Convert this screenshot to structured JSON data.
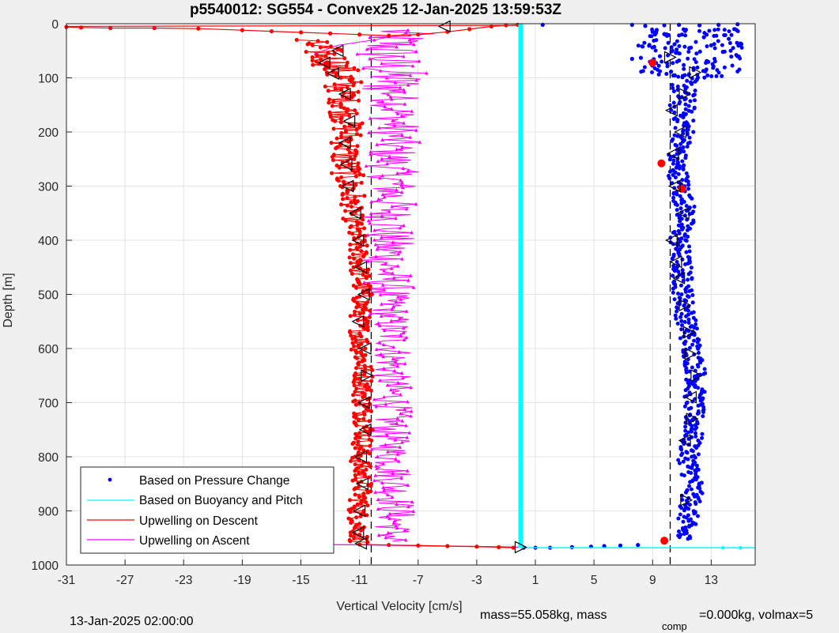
{
  "chart_data": {
    "type": "scatter",
    "title": "p5540012: SG554 - Convex25 12-Jan-2025 13:59:53Z",
    "xlabel": "Vertical Velocity [cm/s]",
    "ylabel": "Depth [m]",
    "xlim": [
      -31,
      16
    ],
    "ylim": [
      0,
      1000
    ],
    "y_reversed": true,
    "grid": true,
    "x_ticks": [
      "-31",
      "-27",
      "-23",
      "-19",
      "-15",
      "-11",
      "-7",
      "-3",
      "1",
      "5",
      "9",
      "13"
    ],
    "y_ticks": [
      "0",
      "100",
      "200",
      "300",
      "400",
      "500",
      "600",
      "700",
      "800",
      "900",
      "1000"
    ],
    "legend_position": "bottom-left",
    "legend": [
      {
        "label": "Based on Pressure Change",
        "color": "#0000ff",
        "style": "dot"
      },
      {
        "label": "Based on Buoyancy and Pitch",
        "color": "#00ffff",
        "style": "line"
      },
      {
        "label": "Upwelling on Descent",
        "color": "#ff0000",
        "style": "line"
      },
      {
        "label": "Upwelling on Ascent",
        "color": "#ff00ff",
        "style": "line"
      }
    ],
    "reference_lines_x": [
      -10.2,
      10.2
    ],
    "buoyancy_pitch": {
      "color": "#00ffff",
      "x": [
        0.0,
        0.0,
        16.0
      ],
      "y": [
        0,
        968,
        968
      ]
    },
    "pressure_change_surface": [
      {
        "x": 7.6,
        "y": 2
      },
      {
        "x": 8.5,
        "y": 4
      },
      {
        "x": 9.8,
        "y": 3
      },
      {
        "x": 10.8,
        "y": 2
      },
      {
        "x": 12.2,
        "y": 3
      },
      {
        "x": 13.5,
        "y": 2
      },
      {
        "x": 14.8,
        "y": 1
      },
      {
        "x": 1.5,
        "y": 2
      },
      {
        "x": 11.0,
        "y": 20
      },
      {
        "x": 12.5,
        "y": 25
      },
      {
        "x": 14.2,
        "y": 28
      },
      {
        "x": 13.0,
        "y": 40
      },
      {
        "x": 11.5,
        "y": 45
      },
      {
        "x": 10.5,
        "y": 38
      },
      {
        "x": 12.0,
        "y": 55
      },
      {
        "x": 13.8,
        "y": 52
      },
      {
        "x": 9.5,
        "y": 60
      },
      {
        "x": 8.2,
        "y": 63
      },
      {
        "x": 7.6,
        "y": 65
      },
      {
        "x": 9.0,
        "y": 70
      },
      {
        "x": 10.8,
        "y": 68
      },
      {
        "x": 11.8,
        "y": 82
      },
      {
        "x": 12.6,
        "y": 88
      },
      {
        "x": 11.2,
        "y": 95
      }
    ],
    "pressure_change_descent_anchor": [
      {
        "y": 100,
        "x": 11.2
      },
      {
        "y": 150,
        "x": 11.0
      },
      {
        "y": 200,
        "x": 11.2
      },
      {
        "y": 250,
        "x": 10.6
      },
      {
        "y": 300,
        "x": 10.9
      },
      {
        "y": 350,
        "x": 11.3
      },
      {
        "y": 400,
        "x": 10.8
      },
      {
        "y": 450,
        "x": 11.0
      },
      {
        "y": 500,
        "x": 11.1
      },
      {
        "y": 550,
        "x": 11.3
      },
      {
        "y": 600,
        "x": 11.7
      },
      {
        "y": 650,
        "x": 12.0
      },
      {
        "y": 700,
        "x": 11.8
      },
      {
        "y": 750,
        "x": 11.8
      },
      {
        "y": 800,
        "x": 11.4
      },
      {
        "y": 850,
        "x": 11.8
      },
      {
        "y": 900,
        "x": 11.5
      },
      {
        "y": 950,
        "x": 11.0
      }
    ],
    "pressure_change_bottom": [
      {
        "x": 1.0,
        "y": 968
      },
      {
        "x": 2.0,
        "y": 968
      },
      {
        "x": 3.5,
        "y": 967
      },
      {
        "x": 4.8,
        "y": 966
      },
      {
        "x": 5.7,
        "y": 965
      },
      {
        "x": 6.8,
        "y": 964
      },
      {
        "x": 8.0,
        "y": 963
      },
      {
        "x": 0.2,
        "y": 968
      }
    ],
    "descent_anchor": [
      {
        "y": 3,
        "x": -2
      },
      {
        "y": 10,
        "x": -17
      },
      {
        "y": 40,
        "x": -14
      },
      {
        "y": 65,
        "x": -13
      },
      {
        "y": 80,
        "x": -12.6
      },
      {
        "y": 100,
        "x": -12.2
      },
      {
        "y": 150,
        "x": -12.0
      },
      {
        "y": 200,
        "x": -11.8
      },
      {
        "y": 250,
        "x": -12.0
      },
      {
        "y": 300,
        "x": -11.7
      },
      {
        "y": 350,
        "x": -11.5
      },
      {
        "y": 400,
        "x": -11.2
      },
      {
        "y": 450,
        "x": -11.0
      },
      {
        "y": 500,
        "x": -10.8
      },
      {
        "y": 550,
        "x": -11.0
      },
      {
        "y": 600,
        "x": -10.9
      },
      {
        "y": 650,
        "x": -10.7
      },
      {
        "y": 700,
        "x": -10.8
      },
      {
        "y": 750,
        "x": -10.6
      },
      {
        "y": 800,
        "x": -11.0
      },
      {
        "y": 850,
        "x": -10.8
      },
      {
        "y": 900,
        "x": -11.1
      },
      {
        "y": 950,
        "x": -11.0
      }
    ],
    "descent_surface_streak": [
      {
        "x": -31,
        "y": 6
      },
      {
        "x": -30,
        "y": 7
      },
      {
        "x": -28,
        "y": 8
      },
      {
        "x": -25,
        "y": 8
      },
      {
        "x": -22,
        "y": 9
      },
      {
        "x": -19,
        "y": 12
      },
      {
        "x": -17,
        "y": 14
      },
      {
        "x": -15,
        "y": 16
      },
      {
        "x": -13,
        "y": 18
      },
      {
        "x": -11,
        "y": 20
      },
      {
        "x": -9,
        "y": 22
      },
      {
        "x": -7,
        "y": 20
      },
      {
        "x": -5,
        "y": 15
      },
      {
        "x": -3.5,
        "y": 10
      },
      {
        "x": -2,
        "y": 5
      },
      {
        "x": -1,
        "y": 3
      },
      {
        "x": -0.2,
        "y": 2
      }
    ],
    "descent_bottom_streak": [
      {
        "x": -11.0,
        "y": 962
      },
      {
        "x": -9,
        "y": 963
      },
      {
        "x": -7,
        "y": 964
      },
      {
        "x": -5,
        "y": 965
      },
      {
        "x": -3,
        "y": 966
      },
      {
        "x": -1.5,
        "y": 967
      },
      {
        "x": -0.5,
        "y": 968
      }
    ],
    "ascent_anchor": [
      {
        "y": 20,
        "x": -8.5
      },
      {
        "y": 60,
        "x": -9.2
      },
      {
        "y": 100,
        "x": -8.8
      },
      {
        "y": 150,
        "x": -8.5
      },
      {
        "y": 200,
        "x": -8.6
      },
      {
        "y": 250,
        "x": -8.8
      },
      {
        "y": 300,
        "x": -8.7
      },
      {
        "y": 350,
        "x": -8.9
      },
      {
        "y": 400,
        "x": -9.0
      },
      {
        "y": 450,
        "x": -9.1
      },
      {
        "y": 500,
        "x": -9.0
      },
      {
        "y": 550,
        "x": -8.9
      },
      {
        "y": 600,
        "x": -8.6
      },
      {
        "y": 650,
        "x": -8.9
      },
      {
        "y": 700,
        "x": -8.7
      },
      {
        "y": 750,
        "x": -9.0
      },
      {
        "y": 800,
        "x": -8.8
      },
      {
        "y": 850,
        "x": -8.6
      },
      {
        "y": 900,
        "x": -8.5
      },
      {
        "y": 950,
        "x": -8.7
      }
    ],
    "descent_markers": [
      {
        "x": -5.2,
        "y": 5,
        "dir": "left"
      },
      {
        "x": -12.5,
        "y": 50,
        "dir": "left"
      },
      {
        "x": -13.4,
        "y": 72,
        "dir": "left"
      },
      {
        "x": -12.8,
        "y": 92,
        "dir": "left"
      },
      {
        "x": -12.0,
        "y": 130,
        "dir": "left"
      },
      {
        "x": -11.7,
        "y": 180,
        "dir": "left"
      },
      {
        "x": -12.0,
        "y": 220,
        "dir": "left"
      },
      {
        "x": -11.9,
        "y": 260,
        "dir": "left"
      },
      {
        "x": -11.8,
        "y": 300,
        "dir": "left"
      },
      {
        "x": -11.3,
        "y": 350,
        "dir": "left"
      },
      {
        "x": -11.1,
        "y": 400,
        "dir": "left"
      },
      {
        "x": -10.9,
        "y": 450,
        "dir": "left"
      },
      {
        "x": -10.7,
        "y": 500,
        "dir": "left"
      },
      {
        "x": -11.1,
        "y": 550,
        "dir": "left"
      },
      {
        "x": -10.6,
        "y": 600,
        "dir": "left"
      },
      {
        "x": -10.5,
        "y": 650,
        "dir": "right"
      },
      {
        "x": -10.7,
        "y": 700,
        "dir": "left"
      },
      {
        "x": -10.6,
        "y": 750,
        "dir": "left"
      },
      {
        "x": -10.9,
        "y": 800,
        "dir": "left"
      },
      {
        "x": -10.8,
        "y": 850,
        "dir": "left"
      },
      {
        "x": -11.0,
        "y": 900,
        "dir": "left"
      },
      {
        "x": -11.1,
        "y": 940,
        "dir": "left"
      },
      {
        "x": -10.9,
        "y": 960,
        "dir": "left"
      },
      {
        "x": 0.0,
        "y": 967,
        "dir": "right"
      }
    ],
    "pressure_markers": [
      {
        "x": 10.2,
        "y": 62,
        "dir": "right"
      },
      {
        "x": 11.9,
        "y": 90,
        "dir": "right"
      },
      {
        "x": 11.2,
        "y": 130,
        "dir": "right"
      },
      {
        "x": 10.3,
        "y": 160,
        "dir": "left"
      },
      {
        "x": 10.9,
        "y": 200,
        "dir": "left"
      },
      {
        "x": 10.4,
        "y": 240,
        "dir": "left"
      },
      {
        "x": 10.5,
        "y": 300,
        "dir": "left"
      },
      {
        "x": 11.1,
        "y": 350,
        "dir": "left"
      },
      {
        "x": 10.3,
        "y": 400,
        "dir": "left"
      },
      {
        "x": 10.6,
        "y": 440,
        "dir": "left"
      },
      {
        "x": 10.8,
        "y": 470,
        "dir": "left"
      },
      {
        "x": 11.2,
        "y": 520,
        "dir": "right"
      },
      {
        "x": 11.5,
        "y": 570,
        "dir": "right"
      },
      {
        "x": 11.6,
        "y": 610,
        "dir": "right"
      },
      {
        "x": 12.0,
        "y": 650,
        "dir": "right"
      },
      {
        "x": 11.6,
        "y": 690,
        "dir": "left"
      },
      {
        "x": 11.7,
        "y": 730,
        "dir": "right"
      },
      {
        "x": 11.2,
        "y": 770,
        "dir": "left"
      },
      {
        "x": 11.3,
        "y": 880,
        "dir": "right"
      }
    ],
    "red_dots": [
      {
        "x": 9.0,
        "y": 72
      },
      {
        "x": 9.6,
        "y": 258
      },
      {
        "x": 11.0,
        "y": 305
      },
      {
        "x": 9.8,
        "y": 955
      },
      {
        "x": -13.2,
        "y": 75
      }
    ]
  },
  "footer": {
    "date_label": "13-Jan-2025 02:00:00",
    "mass_text": "mass=55.058kg, mass",
    "comp_sub": "comp",
    "volmax_text": "=0.000kg, volmax=5"
  }
}
